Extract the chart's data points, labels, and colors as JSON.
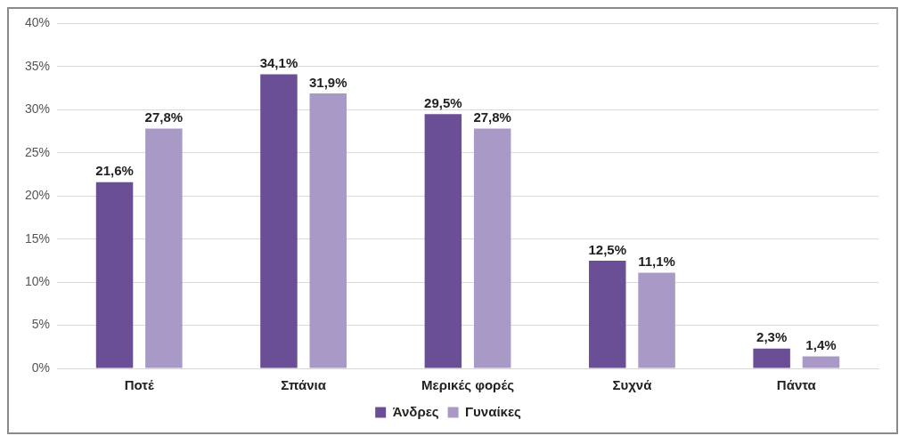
{
  "chart_data": {
    "type": "bar",
    "categories": [
      "Ποτέ",
      "Σπάνια",
      "Μερικές φορές",
      "Συχνά",
      "Πάντα"
    ],
    "series": [
      {
        "name": "Άνδρες",
        "color": "#6b4f96",
        "values": [
          21.6,
          34.1,
          29.5,
          12.5,
          2.3
        ],
        "value_labels": [
          "21,6%",
          "34,1%",
          "29,5%",
          "12,5%",
          "2,3%"
        ]
      },
      {
        "name": "Γυναίκες",
        "color": "#a899c6",
        "values": [
          27.8,
          31.9,
          27.8,
          11.1,
          1.4
        ],
        "value_labels": [
          "27,8%",
          "31,9%",
          "27,8%",
          "11,1%",
          "1,4%"
        ]
      }
    ],
    "ylim": [
      0,
      40
    ],
    "yticks": [
      {
        "value": 0,
        "label": "0%"
      },
      {
        "value": 5,
        "label": "5%"
      },
      {
        "value": 10,
        "label": "10%"
      },
      {
        "value": 15,
        "label": "15%"
      },
      {
        "value": 20,
        "label": "20%"
      },
      {
        "value": 25,
        "label": "25%"
      },
      {
        "value": 30,
        "label": "30%"
      },
      {
        "value": 35,
        "label": "35%"
      },
      {
        "value": 40,
        "label": "40%"
      }
    ],
    "grid": "y",
    "legend": "bottom"
  }
}
